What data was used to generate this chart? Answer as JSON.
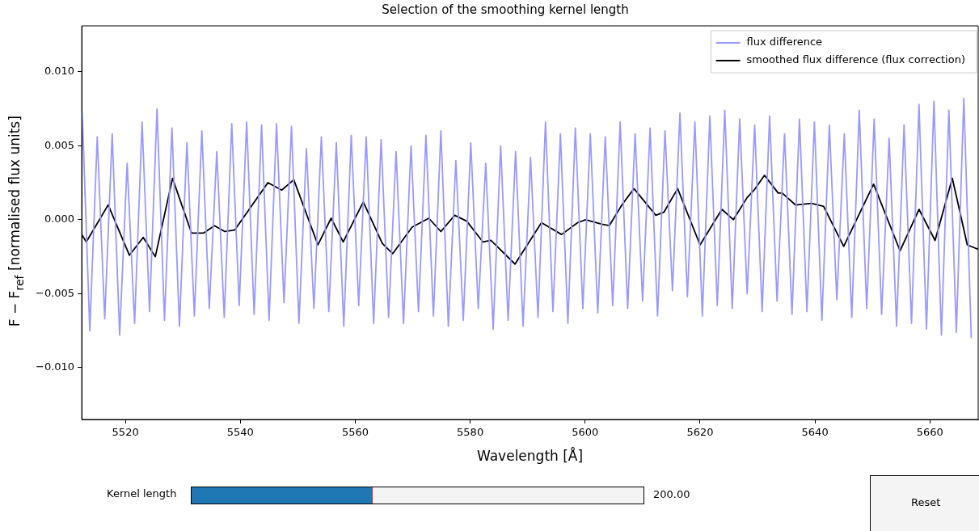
{
  "chart_data": {
    "type": "line",
    "title": "Selection of the smoothing kernel length",
    "xlabel": "Wavelength [Å]",
    "ylabel": "F − F$_{ref}$ [normalised flux units]",
    "xlim": [
      5512.4,
      5668.4
    ],
    "xticks": [
      5520,
      5540,
      5560,
      5580,
      5600,
      5620,
      5640,
      5660
    ],
    "ylim": [
      -0.0135,
      0.0131
    ],
    "yticks": [
      {
        "value": -0.01,
        "label": "−0.010"
      },
      {
        "value": -0.005,
        "label": "−0.005"
      },
      {
        "value": 0,
        "label": "0.000"
      },
      {
        "value": 0.005,
        "label": "0.005"
      },
      {
        "value": 0.01,
        "label": "0.010"
      }
    ],
    "legend": "top right",
    "annotations": [
      "Kernel length",
      "200.00",
      "Reset"
    ],
    "series": [
      {
        "name": "flux difference",
        "color": "#9999ff",
        "x": [
          5512.5,
          5513.8,
          5515.1,
          5516.4,
          5517.7,
          5519.0,
          5520.3,
          5521.6,
          5522.9,
          5524.2,
          5525.5,
          5526.8,
          5528.1,
          5529.4,
          5530.7,
          5532.0,
          5533.3,
          5534.6,
          5535.9,
          5537.2,
          5538.5,
          5539.8,
          5541.1,
          5542.4,
          5543.7,
          5545.0,
          5546.3,
          5547.6,
          5548.9,
          5550.2,
          5551.5,
          5552.8,
          5554.1,
          5555.4,
          5556.7,
          5558.0,
          5559.3,
          5560.6,
          5561.9,
          5563.2,
          5564.5,
          5565.8,
          5567.1,
          5568.4,
          5569.7,
          5571.0,
          5572.3,
          5573.6,
          5574.9,
          5576.2,
          5577.5,
          5578.8,
          5580.1,
          5581.4,
          5582.7,
          5584.0,
          5585.3,
          5586.6,
          5587.9,
          5589.2,
          5590.5,
          5591.8,
          5593.1,
          5594.4,
          5595.7,
          5597.0,
          5598.3,
          5599.6,
          5600.9,
          5602.2,
          5603.5,
          5604.8,
          5606.1,
          5607.4,
          5608.7,
          5610.0,
          5611.3,
          5612.6,
          5613.9,
          5615.2,
          5616.5,
          5617.8,
          5619.1,
          5620.4,
          5621.7,
          5623.0,
          5624.3,
          5625.6,
          5626.9,
          5628.2,
          5629.5,
          5630.8,
          5632.1,
          5633.4,
          5634.7,
          5636.0,
          5637.3,
          5638.6,
          5639.9,
          5641.2,
          5642.5,
          5643.8,
          5645.1,
          5646.4,
          5647.7,
          5649.0,
          5650.3,
          5651.6,
          5652.9,
          5654.2,
          5655.5,
          5656.8,
          5658.1,
          5659.4,
          5660.7,
          5662.0,
          5663.3,
          5664.6,
          5665.9,
          5667.2
        ],
        "values": [
          0.0072,
          -0.0075,
          0.0056,
          -0.0067,
          0.0058,
          -0.0078,
          0.0038,
          -0.007,
          0.0066,
          -0.0062,
          0.0075,
          -0.0068,
          0.0062,
          -0.0072,
          0.0052,
          -0.0065,
          0.006,
          -0.006,
          0.0046,
          -0.0066,
          0.0065,
          -0.0058,
          0.0066,
          -0.0064,
          0.0064,
          -0.0068,
          0.0065,
          -0.0056,
          0.0063,
          -0.007,
          0.0048,
          -0.006,
          0.0056,
          -0.0062,
          0.0052,
          -0.0072,
          0.0057,
          -0.0058,
          0.0056,
          -0.007,
          0.0054,
          -0.0066,
          0.0046,
          -0.007,
          0.005,
          -0.0062,
          0.0057,
          -0.0065,
          0.006,
          -0.0072,
          0.004,
          -0.0068,
          0.0052,
          -0.006,
          0.0038,
          -0.0074,
          0.005,
          -0.0068,
          0.0046,
          -0.0072,
          0.0042,
          -0.0066,
          0.0066,
          -0.0062,
          0.0058,
          -0.007,
          0.0062,
          -0.006,
          0.0058,
          -0.0063,
          0.0056,
          -0.0058,
          0.0066,
          -0.006,
          0.0058,
          -0.0055,
          0.0062,
          -0.0065,
          0.006,
          -0.0048,
          0.0072,
          -0.0052,
          0.0066,
          -0.0065,
          0.007,
          -0.0058,
          0.0074,
          -0.006,
          0.0068,
          -0.005,
          0.0064,
          -0.0062,
          0.007,
          -0.0055,
          0.0058,
          -0.0064,
          0.0068,
          -0.0062,
          0.0066,
          -0.0068,
          0.0064,
          -0.0054,
          0.0058,
          -0.0066,
          0.0074,
          -0.006,
          0.0068,
          -0.0064,
          0.0055,
          -0.0072,
          0.0064,
          -0.007,
          0.0078,
          -0.0074,
          0.008,
          -0.0078,
          0.0074,
          -0.0076,
          0.0082,
          -0.008
        ]
      },
      {
        "name": "smoothed flux difference (flux correction)",
        "color": "#000000",
        "x": [
          5512.4,
          5513.2,
          5517.0,
          5520.7,
          5523.1,
          5525.2,
          5528.2,
          5531.5,
          5533.6,
          5535.5,
          5537.3,
          5539.0,
          5544.8,
          5547.2,
          5549.3,
          5553.5,
          5555.8,
          5557.9,
          5561.4,
          5564.7,
          5566.5,
          5569.9,
          5572.8,
          5574.9,
          5577.3,
          5579.4,
          5582.2,
          5583.6,
          5587.8,
          5592.4,
          5595.9,
          5598.7,
          5600.1,
          5602.9,
          5604.2,
          5606.4,
          5608.5,
          5612.3,
          5613.7,
          5616.1,
          5620.0,
          5623.8,
          5625.8,
          5628.2,
          5629.4,
          5631.2,
          5633.6,
          5634.3,
          5636.6,
          5639.4,
          5641.5,
          5645.0,
          5650.2,
          5654.8,
          5658.1,
          5660.9,
          5663.9,
          5666.5,
          5668.4
        ],
        "values": [
          -0.001,
          -0.0015,
          0.001,
          -0.0024,
          -0.0012,
          -0.0025,
          0.0028,
          -0.0009,
          -0.0009,
          -0.0004,
          -0.0008,
          -0.0007,
          0.0025,
          0.002,
          0.0027,
          -0.0017,
          0.0001,
          -0.0015,
          0.0012,
          -0.0016,
          -0.0023,
          -0.0005,
          0.0001,
          -0.0008,
          0.0003,
          -0.0001,
          -0.0015,
          -0.0014,
          -0.003,
          -0.0002,
          -0.001,
          -0.0002,
          0.0,
          -0.0003,
          -0.0004,
          0.001,
          0.0021,
          0.0003,
          0.0005,
          0.0021,
          -0.0017,
          0.0007,
          0.0,
          0.0015,
          0.002,
          0.003,
          0.0018,
          0.0018,
          0.001,
          0.0011,
          0.0009,
          -0.0018,
          0.0024,
          -0.0021,
          0.0007,
          -0.0014,
          0.0028,
          -0.0017,
          -0.002
        ]
      }
    ]
  }
}
